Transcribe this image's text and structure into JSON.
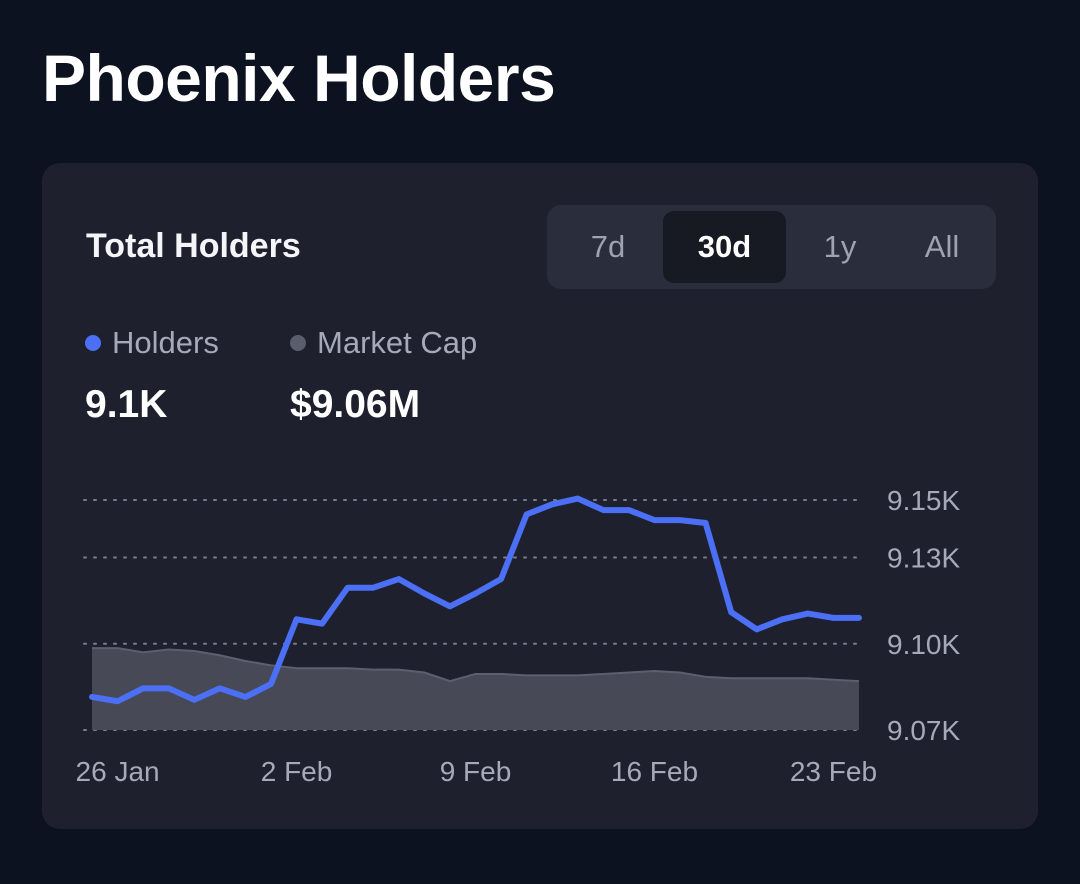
{
  "page": {
    "title": "Phoenix Holders"
  },
  "card": {
    "title": "Total Holders",
    "ranges": [
      "7d",
      "30d",
      "1y",
      "All"
    ],
    "active_range": "30d"
  },
  "legend": {
    "holders": {
      "label": "Holders",
      "value": "9.1K",
      "color": "#4b6ff5"
    },
    "market_cap": {
      "label": "Market Cap",
      "value": "$9.06M",
      "color": "#5a5d6b"
    }
  },
  "colors": {
    "background": "#0d1220",
    "card": "#1e202d",
    "holders_line": "#4b6ff5",
    "market_cap_area": "#4a4c5a",
    "grid": "#7a7d8c"
  },
  "chart_data": {
    "type": "line",
    "title": "Total Holders",
    "xlabel": "",
    "ylabel": "",
    "ylim": [
      9.07,
      9.15
    ],
    "y_ticks": [
      9.15,
      9.13,
      9.1,
      9.07
    ],
    "y_tick_labels": [
      "9.15K",
      "9.13K",
      "9.10K",
      "9.07K"
    ],
    "x_tick_labels": [
      "26 Jan",
      "2 Feb",
      "9 Feb",
      "16 Feb",
      "23 Feb"
    ],
    "x_tick_days": [
      1,
      8,
      15,
      22,
      29
    ],
    "x_range": [
      0,
      30
    ],
    "grid": true,
    "series": [
      {
        "name": "Holders",
        "type": "line",
        "x": [
          0,
          1,
          2,
          3,
          4,
          5,
          6,
          7,
          8,
          9,
          10,
          11,
          12,
          13,
          14,
          15,
          16,
          17,
          18,
          19,
          20,
          21,
          22,
          23,
          24,
          25,
          26,
          27,
          28,
          29,
          30
        ],
        "values": [
          9.0815,
          9.08,
          9.0845,
          9.0845,
          9.0805,
          9.0845,
          9.0815,
          9.086,
          9.1085,
          9.107,
          9.1195,
          9.1195,
          9.1225,
          9.1175,
          9.113,
          9.1175,
          9.1225,
          9.145,
          9.1485,
          9.1505,
          9.1465,
          9.1465,
          9.143,
          9.143,
          9.142,
          9.111,
          9.105,
          9.1085,
          9.1105,
          9.109,
          9.109
        ]
      },
      {
        "name": "Market Cap",
        "type": "area",
        "x": [
          0,
          1,
          2,
          3,
          4,
          5,
          6,
          7,
          8,
          9,
          10,
          11,
          12,
          13,
          14,
          15,
          16,
          17,
          18,
          19,
          20,
          21,
          22,
          23,
          24,
          25,
          26,
          27,
          28,
          29,
          30
        ],
        "values": [
          9.0985,
          9.0985,
          9.097,
          9.098,
          9.0975,
          9.096,
          9.094,
          9.0925,
          9.0915,
          9.0915,
          9.0915,
          9.091,
          9.091,
          9.09,
          9.087,
          9.0895,
          9.0895,
          9.089,
          9.089,
          9.089,
          9.0895,
          9.09,
          9.0905,
          9.09,
          9.0885,
          9.088,
          9.088,
          9.088,
          9.088,
          9.0875,
          9.087
        ]
      }
    ]
  }
}
